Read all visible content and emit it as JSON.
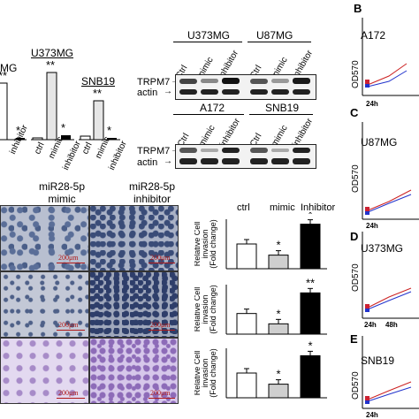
{
  "top_bars": {
    "groups": [
      {
        "label": "MG",
        "y_top": 78
      },
      {
        "label": "U373MG",
        "y_top": 60
      },
      {
        "label": "SNB19",
        "y_top": 92
      }
    ],
    "categories": [
      "ctrl",
      "mimic",
      "inhibitor"
    ],
    "sig_mimic": "**",
    "sig_inhibitor": "*"
  },
  "blots": {
    "top": {
      "cells": [
        "U373MG",
        "U87MG"
      ],
      "lanes": [
        "Ctrl",
        "mimic",
        "inhibitor",
        "Ctrl",
        "mimic",
        "inhibitor"
      ],
      "rows": [
        "TRPM7",
        "actin"
      ]
    },
    "bottom": {
      "cells": [
        "A172",
        "SNB19"
      ],
      "lanes": [
        "Ctrl",
        "mimic",
        "inhibitor",
        "Ctrl",
        "mimic",
        "inhibitor"
      ],
      "rows": [
        "TRPM7",
        "actin"
      ]
    }
  },
  "micro": {
    "col1": "miR28-5p\nmimic",
    "col2": "miR28-5p\ninhibitor",
    "scale": "200μm"
  },
  "invasion": {
    "headers": [
      "ctrl",
      "mimic",
      "Inhibitor"
    ],
    "ylabel": "Relative Cell invasion (Fold change)",
    "ylabel_short": "Relative Cell",
    "ylabel_mid": "invasion",
    "ylabel_end": "(Fold change)"
  },
  "chart_data": [
    {
      "type": "bar",
      "title": "",
      "categories": [
        "ctrl",
        "mimic",
        "inhibitor"
      ],
      "values": [
        1.0,
        0.55,
        1.8
      ],
      "significance": [
        "",
        "*",
        "*"
      ],
      "ylim": [
        0,
        2.0
      ],
      "ylabel": "Relative Cell invasion (Fold change)"
    },
    {
      "type": "bar",
      "title": "",
      "categories": [
        "ctrl",
        "mimic",
        "inhibitor"
      ],
      "values": [
        1.0,
        0.5,
        2.0
      ],
      "significance": [
        "",
        "*",
        "**"
      ],
      "ylim": [
        0,
        2.4
      ],
      "ylabel": "Relative Cell invasion (Fold change)"
    },
    {
      "type": "bar",
      "title": "",
      "categories": [
        "ctrl",
        "mimic",
        "inhibitor"
      ],
      "values": [
        1.0,
        0.55,
        1.7
      ],
      "significance": [
        "",
        "*",
        "*"
      ],
      "ylim": [
        0,
        2.0
      ],
      "ylabel": "Relative Cell invasion (Fold change)"
    }
  ],
  "growth": {
    "panels": [
      {
        "letter": "B",
        "cell": "A172"
      },
      {
        "letter": "C",
        "cell": "U87MG"
      },
      {
        "letter": "D",
        "cell": "U373MG"
      },
      {
        "letter": "E",
        "cell": "SNB19"
      }
    ],
    "ylabel": "OD570",
    "xtick": "24h",
    "xtick2": "48h"
  }
}
